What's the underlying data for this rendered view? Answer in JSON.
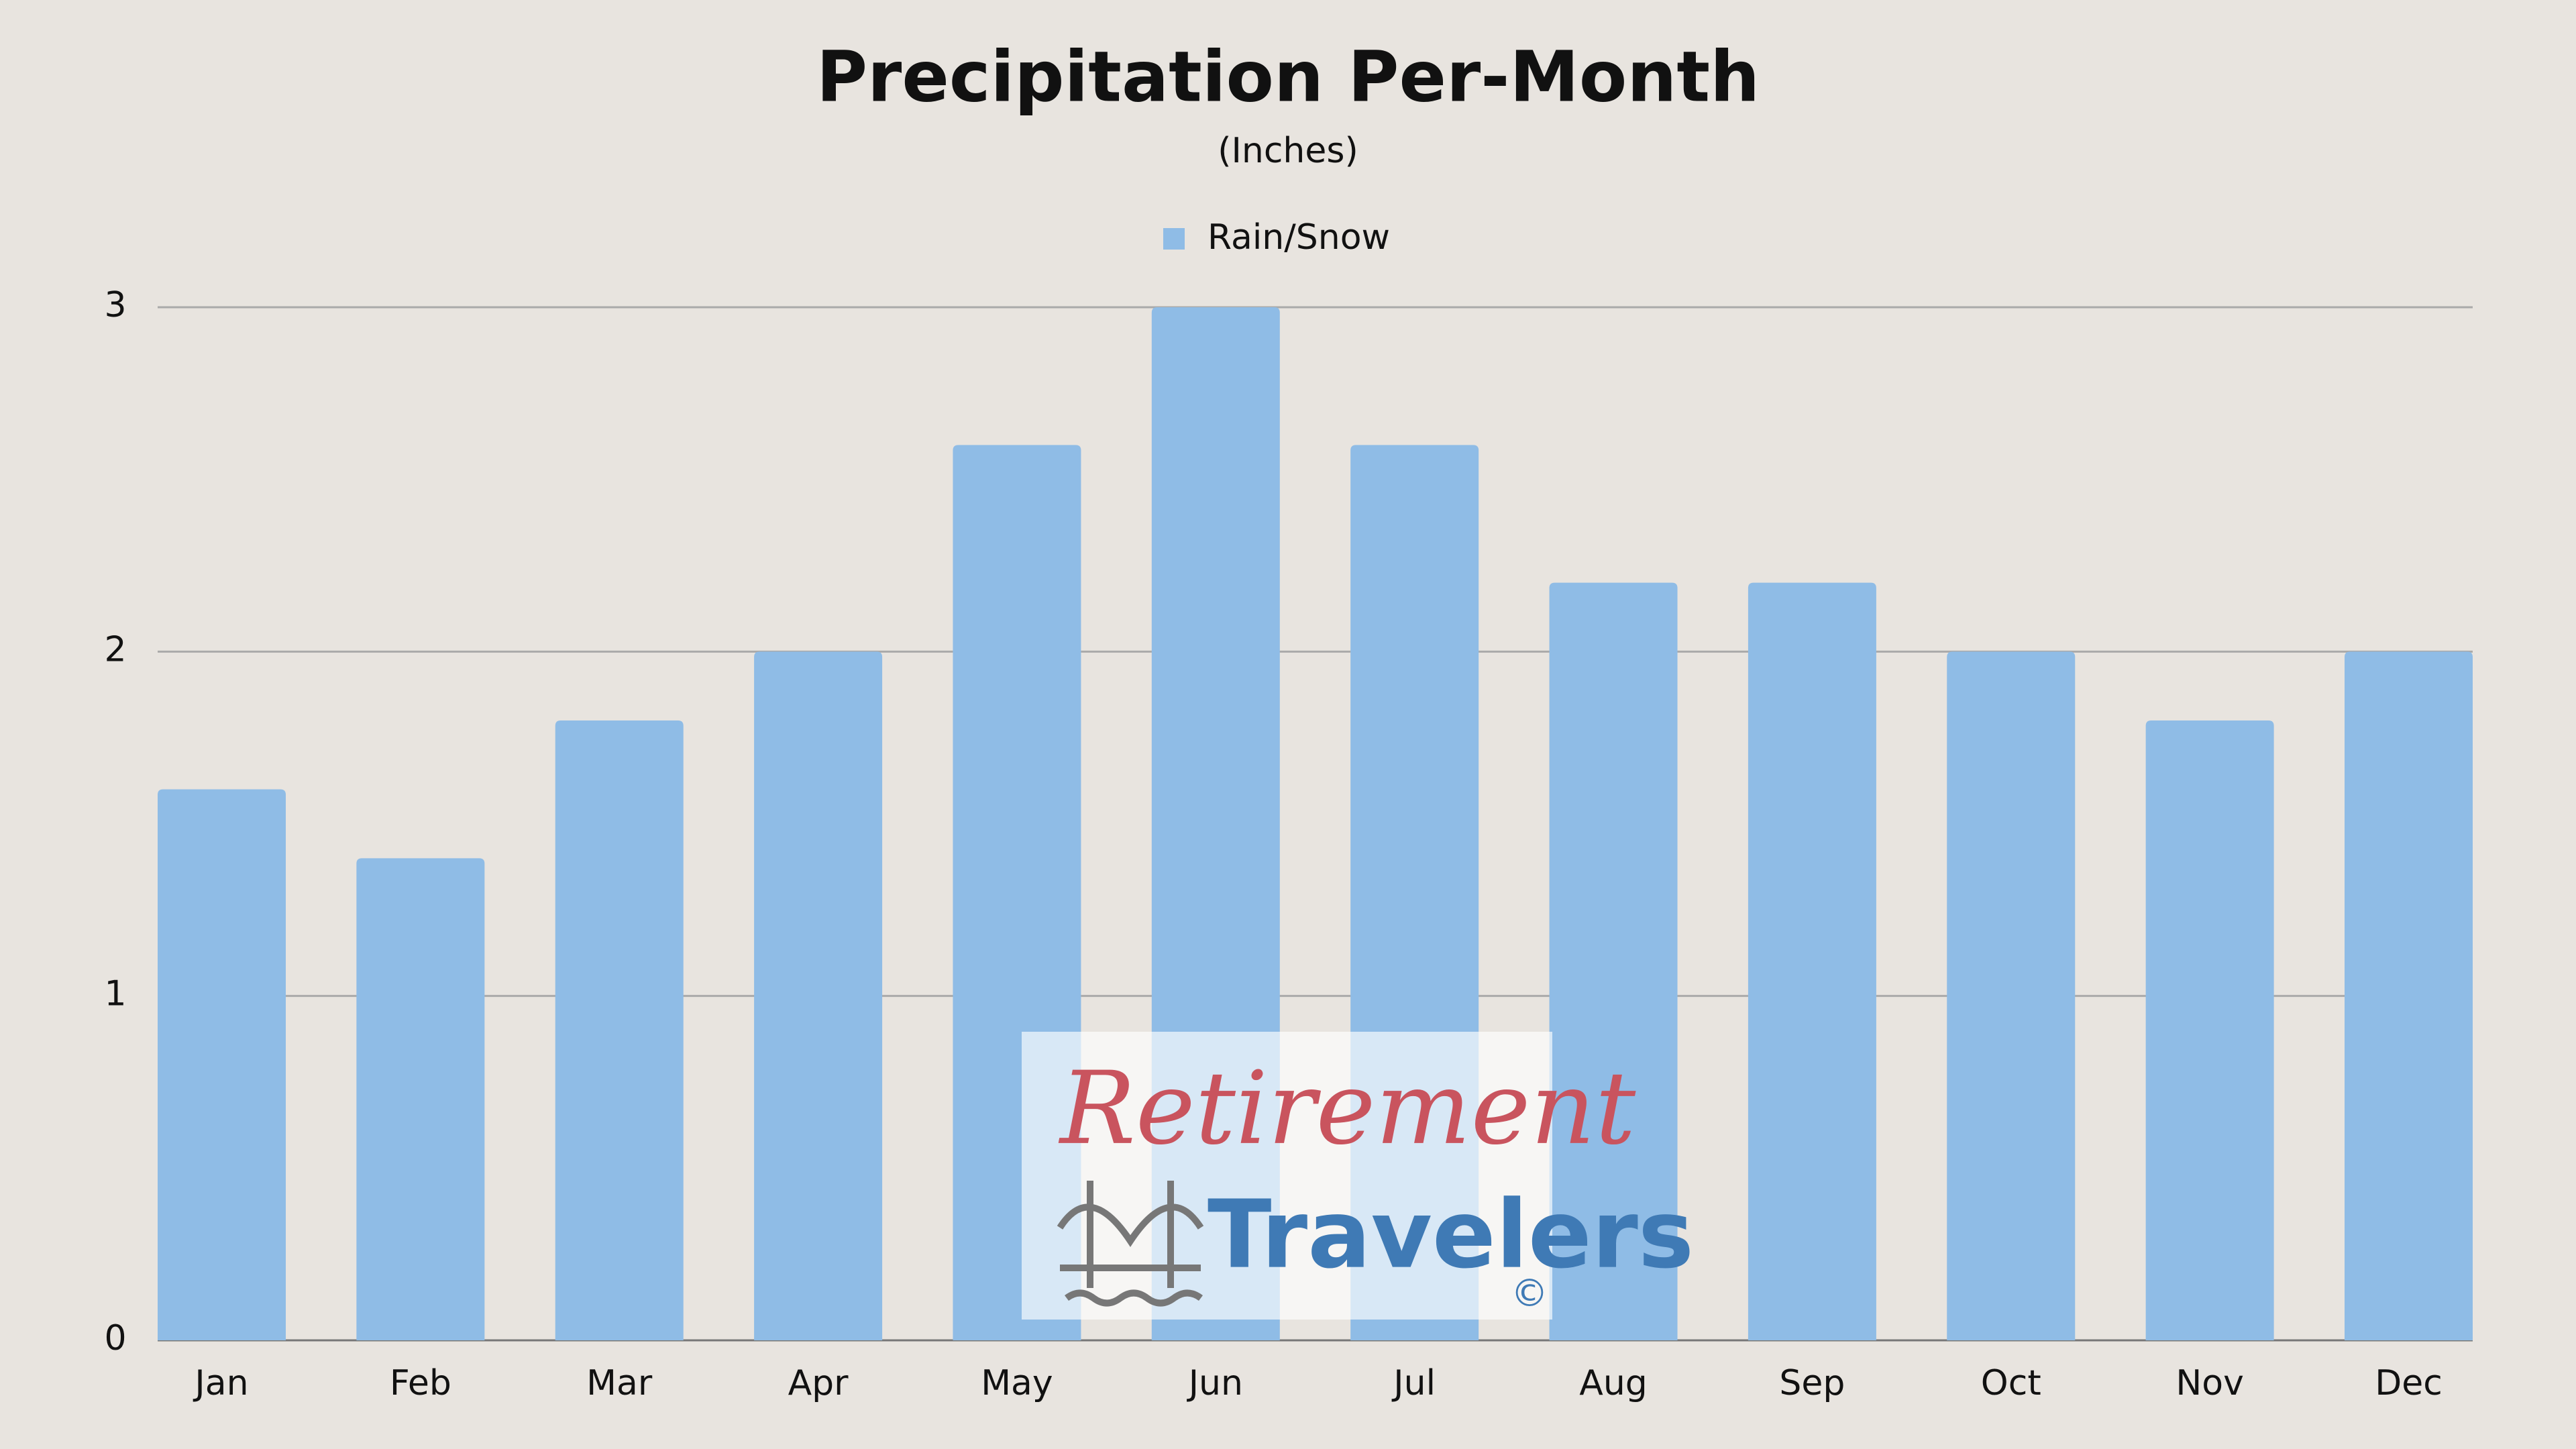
{
  "chart_data": {
    "type": "bar",
    "title": "Precipitation Per-Month",
    "subtitle": "(Inches)",
    "categories": [
      "Jan",
      "Feb",
      "Mar",
      "Apr",
      "May",
      "Jun",
      "Jul",
      "Aug",
      "Sep",
      "Oct",
      "Nov",
      "Dec"
    ],
    "series": [
      {
        "name": "Rain/Snow",
        "color": "#8fbce6",
        "values": [
          1.6,
          1.4,
          1.8,
          2.0,
          2.6,
          3.0,
          2.6,
          2.2,
          2.2,
          2.0,
          1.8,
          2.0
        ]
      }
    ],
    "ylim": [
      0,
      3
    ],
    "yticks": [
      0,
      1,
      2,
      3
    ],
    "grid": true,
    "legend": "top"
  },
  "watermark": {
    "line1": "Retirement",
    "line2": "Travelers",
    "mark": "©"
  }
}
